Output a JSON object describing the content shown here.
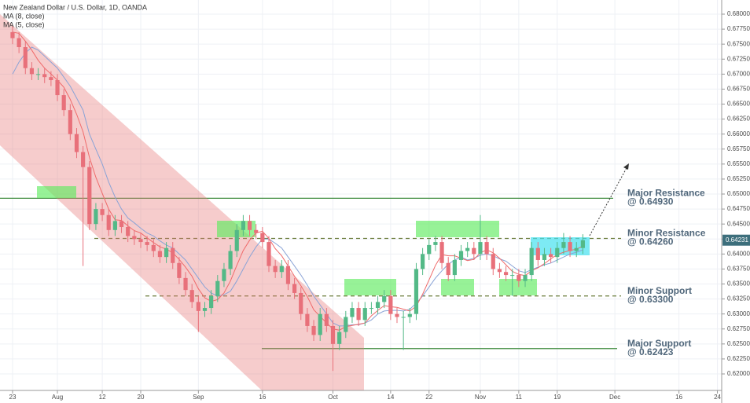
{
  "chart_data": {
    "type": "candlestick",
    "title": "New Zealand Dollar / U.S. Dollar, 1D, OANDA",
    "open": [
      0.677,
      0.676,
      0.6745,
      0.671,
      0.67,
      0.67,
      0.6695,
      0.669,
      0.6665,
      0.664,
      0.66,
      0.657,
      0.6545,
      0.645,
      0.6475,
      0.6465,
      0.644,
      0.6455,
      0.6445,
      0.643,
      0.6425,
      0.642,
      0.6415,
      0.6405,
      0.6395,
      0.641,
      0.6385,
      0.636,
      0.634,
      0.632,
      0.6305,
      0.631,
      0.633,
      0.6355,
      0.6375,
      0.6405,
      0.644,
      0.6455,
      0.644,
      0.6435,
      0.642,
      0.638,
      0.637,
      0.638,
      0.635,
      0.6335,
      0.63,
      0.628,
      0.6265,
      0.63,
      0.628,
      0.625,
      0.627,
      0.6295,
      0.631,
      0.629,
      0.631,
      0.631,
      0.632,
      0.633,
      0.63,
      0.6295,
      0.6295,
      0.63,
      0.6375,
      0.64,
      0.6415,
      0.642,
      0.6385,
      0.6365,
      0.639,
      0.6405,
      0.641,
      0.64,
      0.642,
      0.64,
      0.6375,
      0.637,
      0.6365,
      0.6365,
      0.6355,
      0.6365,
      0.641,
      0.639,
      0.64,
      0.6395,
      0.641,
      0.642,
      0.6405,
      0.641
    ],
    "high": [
      0.678,
      0.677,
      0.6755,
      0.672,
      0.671,
      0.671,
      0.6705,
      0.67,
      0.6675,
      0.665,
      0.661,
      0.658,
      0.6555,
      0.6485,
      0.6485,
      0.6475,
      0.6465,
      0.6465,
      0.6455,
      0.644,
      0.6435,
      0.643,
      0.6425,
      0.6415,
      0.642,
      0.642,
      0.6395,
      0.637,
      0.635,
      0.633,
      0.632,
      0.634,
      0.6365,
      0.6385,
      0.6415,
      0.645,
      0.6465,
      0.6465,
      0.645,
      0.6445,
      0.643,
      0.639,
      0.639,
      0.639,
      0.636,
      0.6345,
      0.631,
      0.629,
      0.631,
      0.631,
      0.629,
      0.628,
      0.6305,
      0.632,
      0.632,
      0.632,
      0.632,
      0.633,
      0.634,
      0.634,
      0.631,
      0.6305,
      0.631,
      0.6385,
      0.641,
      0.6425,
      0.643,
      0.643,
      0.6395,
      0.64,
      0.6415,
      0.642,
      0.642,
      0.6465,
      0.643,
      0.641,
      0.6385,
      0.638,
      0.6375,
      0.6375,
      0.6375,
      0.642,
      0.642,
      0.641,
      0.641,
      0.642,
      0.6435,
      0.643,
      0.642,
      0.6433
    ],
    "low": [
      0.675,
      0.6735,
      0.67,
      0.669,
      0.669,
      0.6685,
      0.668,
      0.6655,
      0.663,
      0.659,
      0.656,
      0.638,
      0.644,
      0.644,
      0.6455,
      0.643,
      0.643,
      0.6435,
      0.642,
      0.6415,
      0.641,
      0.6405,
      0.6395,
      0.6385,
      0.6385,
      0.6375,
      0.635,
      0.633,
      0.631,
      0.627,
      0.6295,
      0.63,
      0.632,
      0.6345,
      0.6365,
      0.6395,
      0.643,
      0.643,
      0.6425,
      0.641,
      0.637,
      0.636,
      0.636,
      0.634,
      0.6325,
      0.629,
      0.627,
      0.6255,
      0.6255,
      0.627,
      0.6205,
      0.624,
      0.626,
      0.6285,
      0.628,
      0.628,
      0.63,
      0.63,
      0.631,
      0.629,
      0.6285,
      0.624,
      0.6285,
      0.629,
      0.6365,
      0.639,
      0.6405,
      0.6375,
      0.6355,
      0.6355,
      0.638,
      0.6395,
      0.639,
      0.639,
      0.639,
      0.6365,
      0.636,
      0.6355,
      0.633,
      0.6345,
      0.6345,
      0.6355,
      0.638,
      0.638,
      0.6385,
      0.6385,
      0.64,
      0.6395,
      0.6395,
      0.64
    ],
    "close": [
      0.676,
      0.6745,
      0.671,
      0.67,
      0.67,
      0.6695,
      0.669,
      0.6665,
      0.664,
      0.66,
      0.657,
      0.6545,
      0.645,
      0.6475,
      0.6465,
      0.644,
      0.6455,
      0.6445,
      0.643,
      0.6425,
      0.642,
      0.6415,
      0.6405,
      0.6395,
      0.641,
      0.6385,
      0.636,
      0.634,
      0.632,
      0.6305,
      0.631,
      0.633,
      0.6355,
      0.6375,
      0.6405,
      0.644,
      0.6455,
      0.644,
      0.6435,
      0.642,
      0.638,
      0.637,
      0.638,
      0.635,
      0.6335,
      0.63,
      0.628,
      0.6265,
      0.63,
      0.628,
      0.625,
      0.627,
      0.6295,
      0.631,
      0.629,
      0.631,
      0.631,
      0.632,
      0.633,
      0.63,
      0.6295,
      0.6295,
      0.63,
      0.6375,
      0.64,
      0.6415,
      0.642,
      0.6385,
      0.6365,
      0.639,
      0.6405,
      0.641,
      0.64,
      0.642,
      0.64,
      0.6375,
      0.637,
      0.6365,
      0.6365,
      0.6355,
      0.6365,
      0.641,
      0.639,
      0.64,
      0.6395,
      0.641,
      0.642,
      0.6405,
      0.641,
      0.6423
    ],
    "up_color": "#53b987",
    "down_color": "#e8707a",
    "series": [
      {
        "name": "MA (8, close)",
        "color": "#8aa3d6",
        "values": [
          0.67,
          0.672,
          0.6735,
          0.6745,
          0.674,
          0.673,
          0.672,
          0.671,
          0.6695,
          0.668,
          0.666,
          0.664,
          0.66,
          0.6575,
          0.655,
          0.652,
          0.6495,
          0.6475,
          0.646,
          0.6452,
          0.6443,
          0.6435,
          0.643,
          0.6422,
          0.6415,
          0.641,
          0.64,
          0.639,
          0.6375,
          0.636,
          0.6345,
          0.6335,
          0.633,
          0.6332,
          0.6338,
          0.6355,
          0.6375,
          0.6395,
          0.6412,
          0.6425,
          0.6425,
          0.6418,
          0.641,
          0.6395,
          0.638,
          0.6365,
          0.6348,
          0.633,
          0.6315,
          0.63,
          0.6285,
          0.628,
          0.628,
          0.6282,
          0.6282,
          0.6285,
          0.629,
          0.63,
          0.6305,
          0.6306,
          0.6306,
          0.6305,
          0.6308,
          0.6318,
          0.633,
          0.6345,
          0.636,
          0.6372,
          0.6383,
          0.639,
          0.6395,
          0.639,
          0.6393,
          0.6398,
          0.64,
          0.6397,
          0.6392,
          0.6388,
          0.638,
          0.6372,
          0.6369,
          0.6374,
          0.6378,
          0.6382,
          0.6385,
          0.639,
          0.6395,
          0.64,
          0.6403,
          0.6407
        ]
      },
      {
        "name": "MA (5, close)",
        "color": "#ef6a6a",
        "values": [
          0.677,
          0.6768,
          0.6755,
          0.674,
          0.6723,
          0.671,
          0.67,
          0.669,
          0.6678,
          0.6658,
          0.6633,
          0.6604,
          0.6561,
          0.6528,
          0.6501,
          0.6475,
          0.6457,
          0.6456,
          0.6447,
          0.6439,
          0.6435,
          0.6427,
          0.6419,
          0.6412,
          0.6408,
          0.6402,
          0.6391,
          0.6378,
          0.6363,
          0.6342,
          0.6327,
          0.6321,
          0.6324,
          0.6335,
          0.6355,
          0.6381,
          0.6406,
          0.6423,
          0.6435,
          0.6438,
          0.6426,
          0.6409,
          0.6397,
          0.638,
          0.6363,
          0.6347,
          0.6329,
          0.6307,
          0.6296,
          0.6285,
          0.6275,
          0.6273,
          0.6279,
          0.6281,
          0.6283,
          0.6285,
          0.6297,
          0.6306,
          0.6314,
          0.6312,
          0.6311,
          0.6308,
          0.6305,
          0.6313,
          0.6333,
          0.6357,
          0.6381,
          0.6399,
          0.6397,
          0.6397,
          0.6393,
          0.6389,
          0.6391,
          0.6402,
          0.6407,
          0.6402,
          0.6393,
          0.6382,
          0.6371,
          0.6366,
          0.6364,
          0.6372,
          0.6377,
          0.6384,
          0.6392,
          0.6399,
          0.6403,
          0.6406,
          0.6408,
          0.6413
        ]
      }
    ],
    "xlim": [
      -1.96,
      110.67
    ],
    "xticks": [
      {
        "value": 0,
        "label": "23"
      },
      {
        "value": 7,
        "label": "Aug"
      },
      {
        "value": 14,
        "label": "12"
      },
      {
        "value": 20,
        "label": "20"
      },
      {
        "value": 29,
        "label": "Sep"
      },
      {
        "value": 39,
        "label": "16"
      },
      {
        "value": 50,
        "label": "Oct"
      },
      {
        "value": 59,
        "label": "14"
      },
      {
        "value": 65,
        "label": "22"
      },
      {
        "value": 73,
        "label": "Nov"
      },
      {
        "value": 79,
        "label": "11"
      },
      {
        "value": 85,
        "label": "19"
      },
      {
        "value": 94,
        "label": "Dec"
      },
      {
        "value": 104,
        "label": "16"
      },
      {
        "value": 110,
        "label": "24"
      }
    ],
    "ylim": [
      0.61725,
      0.68236
    ],
    "yticks": [
      {
        "value": 0.62,
        "label": "0.62000"
      },
      {
        "value": 0.6225,
        "label": "0.62250"
      },
      {
        "value": 0.625,
        "label": "0.62500"
      },
      {
        "value": 0.6275,
        "label": "0.62750"
      },
      {
        "value": 0.63,
        "label": "0.63000"
      },
      {
        "value": 0.6325,
        "label": "0.63250"
      },
      {
        "value": 0.635,
        "label": "0.63500"
      },
      {
        "value": 0.6375,
        "label": "0.63750"
      },
      {
        "value": 0.64,
        "label": "0.64000"
      },
      {
        "value": 0.6425,
        "label": "0.64250"
      },
      {
        "value": 0.645,
        "label": "0.64500"
      },
      {
        "value": 0.6475,
        "label": "0.64750"
      },
      {
        "value": 0.65,
        "label": "0.65000"
      },
      {
        "value": 0.6525,
        "label": "0.65250"
      },
      {
        "value": 0.655,
        "label": "0.65500"
      },
      {
        "value": 0.6575,
        "label": "0.65750"
      },
      {
        "value": 0.66,
        "label": "0.66000"
      },
      {
        "value": 0.6625,
        "label": "0.66250"
      },
      {
        "value": 0.665,
        "label": "0.66500"
      },
      {
        "value": 0.6675,
        "label": "0.66750"
      },
      {
        "value": 0.67,
        "label": "0.67000"
      },
      {
        "value": 0.6725,
        "label": "0.67250"
      },
      {
        "value": 0.675,
        "label": "0.67500"
      },
      {
        "value": 0.6775,
        "label": "0.67750"
      },
      {
        "value": 0.68,
        "label": "0.68000"
      }
    ],
    "grid": true,
    "levels": [
      {
        "name": "Major Resistance",
        "label": "@ 0.64930",
        "value": 0.6493,
        "style": "solid"
      },
      {
        "name": "Minor Resistance",
        "label": "@ 0.64260",
        "value": 0.6426,
        "style": "dashed"
      },
      {
        "name": "Minor Support",
        "label": "@ 0.63300",
        "value": 0.633,
        "style": "dashed"
      },
      {
        "name": "Major Support",
        "label": "@ 0.62423",
        "value": 0.62423,
        "style": "solid"
      }
    ],
    "last_price": {
      "value": 0.64231,
      "label": "0.64231"
    }
  }
}
